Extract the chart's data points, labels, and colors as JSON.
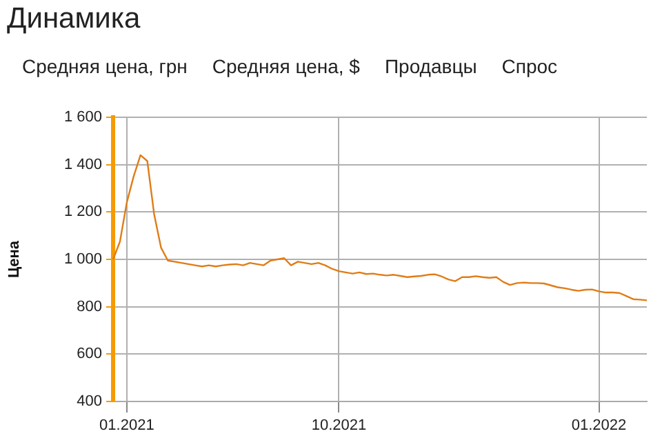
{
  "chart_data": {
    "type": "line",
    "title": "Динамика",
    "annotations": [
      "Средняя цена, грн",
      "Средняя цена, $",
      "Продавцы",
      "Спрос"
    ],
    "ylabel": "Цена",
    "categories": [
      null,
      null,
      "01.2021",
      null,
      null,
      null,
      null,
      null,
      null,
      null,
      null,
      null,
      null,
      null,
      null,
      null,
      null,
      null,
      null,
      null,
      null,
      null,
      null,
      null,
      null,
      null,
      null,
      null,
      null,
      null,
      null,
      null,
      null,
      "10.2021",
      null,
      null,
      null,
      null,
      null,
      null,
      null,
      null,
      null,
      null,
      null,
      null,
      null,
      null,
      null,
      null,
      null,
      null,
      null,
      null,
      null,
      null,
      null,
      null,
      null,
      null,
      null,
      null,
      null,
      null,
      null,
      null,
      null,
      null,
      null,
      null,
      null,
      "01.2022",
      null,
      null,
      null,
      null,
      null,
      null,
      null
    ],
    "series": [
      {
        "color": "#e07c16",
        "values": [
          1000,
          1075,
          1240,
          1350,
          1440,
          1415,
          1190,
          1050,
          995,
          990,
          985,
          980,
          975,
          970,
          975,
          970,
          975,
          978,
          980,
          975,
          985,
          980,
          975,
          995,
          1000,
          1005,
          975,
          990,
          985,
          980,
          985,
          975,
          960,
          950,
          945,
          940,
          945,
          938,
          940,
          935,
          932,
          935,
          930,
          925,
          928,
          930,
          935,
          937,
          928,
          915,
          908,
          925,
          925,
          929,
          925,
          922,
          925,
          905,
          892,
          900,
          902,
          900,
          900,
          898,
          890,
          882,
          878,
          872,
          867,
          872,
          873,
          865,
          860,
          860,
          858,
          845,
          832,
          830,
          827
        ]
      }
    ],
    "ylim": [
      400,
      1600
    ],
    "yticks": [
      400,
      600,
      800,
      {
        "value": 1000,
        "label": "1 000"
      },
      {
        "value": 1200,
        "label": "1 200"
      },
      {
        "value": 1400,
        "label": "1 400"
      },
      {
        "value": 1600,
        "label": "1 600"
      }
    ],
    "grid": true,
    "legend": false,
    "marker": "none",
    "line_style": "solid"
  }
}
